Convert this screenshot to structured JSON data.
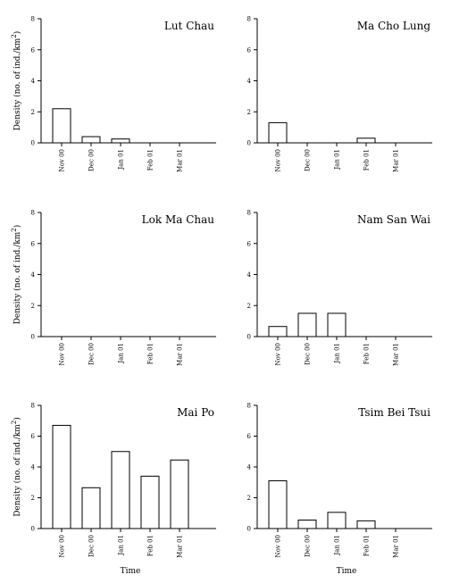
{
  "y_axis_label": "Density (no. of ind./km",
  "y_axis_label_sup": "2",
  "y_axis_label_end": ")",
  "x_axis_label": "Time",
  "chart_data": [
    {
      "type": "bar",
      "title": "Lut Chau",
      "categories": [
        "Nov 00",
        "Dec 00",
        "Jan 01",
        "Feb 01",
        "Mar 01"
      ],
      "values": [
        2.2,
        0.4,
        0.25,
        0,
        0
      ],
      "yticks": [
        "0",
        "2",
        "4",
        "6",
        "8"
      ],
      "ylim": [
        0,
        8
      ]
    },
    {
      "type": "bar",
      "title": "Ma Cho Lung",
      "categories": [
        "Nov 00",
        "Dec 00",
        "Jan 01",
        "Feb 01",
        "Mar 01"
      ],
      "values": [
        1.3,
        0,
        0,
        0.3,
        0
      ],
      "yticks": [
        "0",
        "2",
        "4",
        "6",
        "8"
      ],
      "ylim": [
        0,
        8
      ]
    },
    {
      "type": "bar",
      "title": "Lok Ma Chau",
      "categories": [
        "Nov 00",
        "Dec 00",
        "Jan 01",
        "Feb 01",
        "Mar 01"
      ],
      "values": [
        0,
        0,
        0,
        0,
        0
      ],
      "yticks": [
        "0",
        "2",
        "4",
        "6",
        "8"
      ],
      "ylim": [
        0,
        8
      ]
    },
    {
      "type": "bar",
      "title": "Nam San Wai",
      "categories": [
        "Nov 00",
        "Dec 00",
        "Jan 01",
        "Feb 01",
        "Mar 01"
      ],
      "values": [
        0.65,
        1.5,
        1.5,
        0,
        0
      ],
      "yticks": [
        "0",
        "2",
        "4",
        "6",
        "8"
      ],
      "ylim": [
        0,
        8
      ]
    },
    {
      "type": "bar",
      "title": "Mai Po",
      "categories": [
        "Nov 00",
        "Dec 00",
        "Jan 01",
        "Feb 01",
        "Mar 01"
      ],
      "values": [
        6.7,
        2.65,
        5.0,
        3.4,
        4.45
      ],
      "yticks": [
        "0",
        "2",
        "4",
        "6",
        "8"
      ],
      "ylim": [
        0,
        8
      ]
    },
    {
      "type": "bar",
      "title": "Tsim Bei Tsui",
      "categories": [
        "Nov 00",
        "Dec 00",
        "Jan 01",
        "Feb 01",
        "Mar 01"
      ],
      "values": [
        3.1,
        0.55,
        1.05,
        0.5,
        0
      ],
      "yticks": [
        "0",
        "2",
        "4",
        "6",
        "8"
      ],
      "ylim": [
        0,
        8
      ]
    }
  ]
}
